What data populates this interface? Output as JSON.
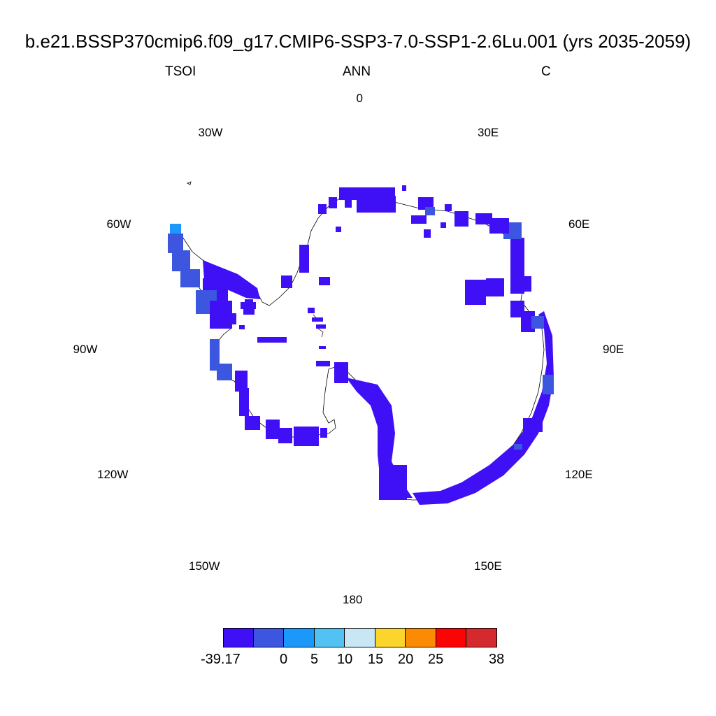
{
  "header": {
    "title": "b.e21.BSSP370cmip6.f09_g17.CMIP6-SSP3-7.0-SSP1-2.6Lu.001 (yrs 2035-2059)",
    "left": "TSOI",
    "center": "ANN",
    "right": "C"
  },
  "longitude_labels": [
    "0",
    "30E",
    "60E",
    "90E",
    "120E",
    "150E",
    "180",
    "150W",
    "120W",
    "90W",
    "60W",
    "30W"
  ],
  "colorbar": {
    "colors": [
      "#3f10f5",
      "#3c56e0",
      "#1b98fa",
      "#52c2f2",
      "#c8e6f4",
      "#fbd42c",
      "#fb8a04",
      "#fb0404",
      "#d42a2d"
    ],
    "labels": [
      "-39.17",
      "0",
      "5",
      "10",
      "15",
      "20",
      "25",
      "38"
    ]
  }
}
